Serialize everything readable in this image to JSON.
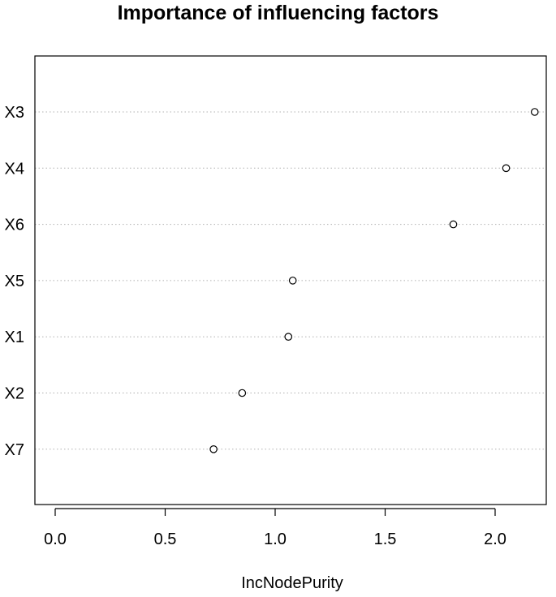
{
  "chart_data": {
    "type": "scatter",
    "title": "Importance of influencing factors",
    "xlabel": "IncNodePurity",
    "ylabel": "",
    "xlim": [
      -0.1,
      2.23
    ],
    "xticks": [
      0.0,
      0.5,
      1.0,
      1.5,
      2.0
    ],
    "xtick_labels": [
      "0.0",
      "0.5",
      "1.0",
      "1.5",
      "2.0"
    ],
    "grid": "dotted horizontal lines per category",
    "legend": "none",
    "categories": [
      "X3",
      "X4",
      "X6",
      "X5",
      "X1",
      "X2",
      "X7"
    ],
    "values": [
      2.18,
      2.05,
      1.81,
      1.08,
      1.06,
      0.85,
      0.72
    ],
    "colors": {
      "axis": "#000000",
      "gridline": "#b0b0b0",
      "point": "#000000"
    }
  }
}
